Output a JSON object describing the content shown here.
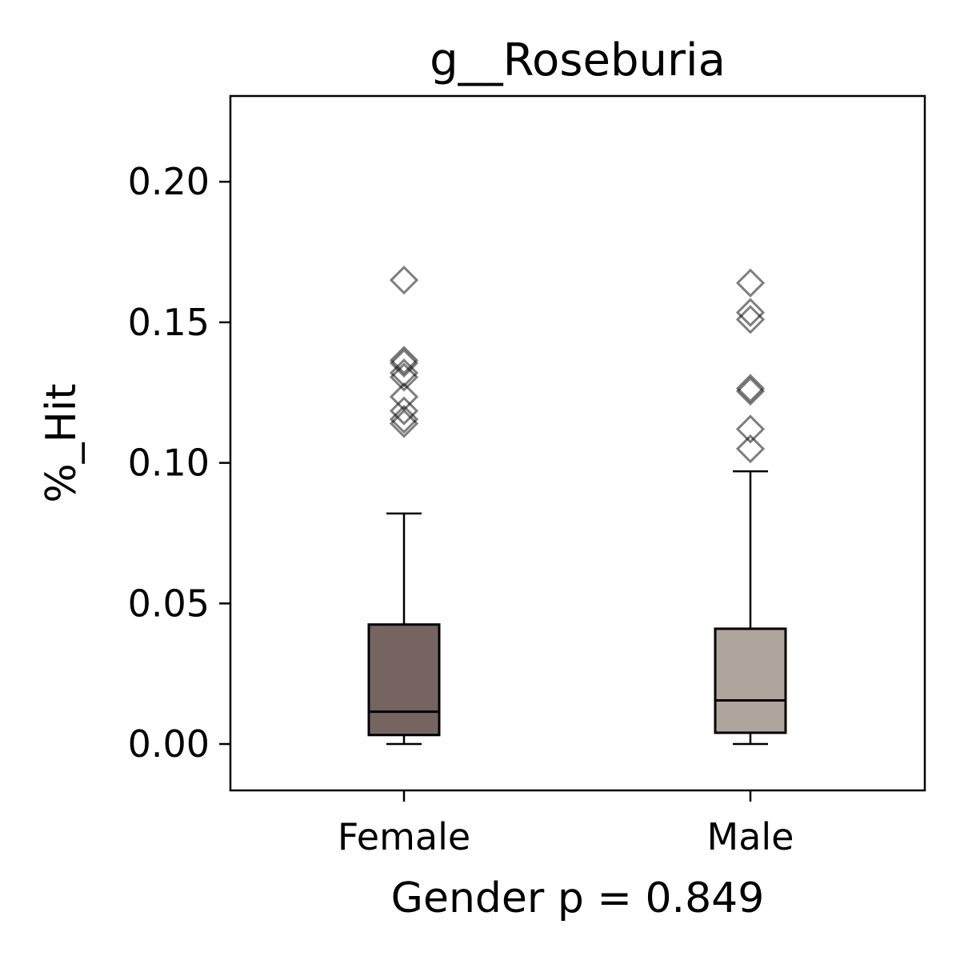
{
  "chart_data": {
    "type": "box",
    "title": "g__Roseburia",
    "xlabel": "Gender p = 0.849",
    "ylabel": "%_Hit",
    "ylim": [
      -0.0165,
      0.2305
    ],
    "yticks": [
      0.0,
      0.05,
      0.1,
      0.15,
      0.2
    ],
    "ytick_labels": [
      "0.00",
      "0.05",
      "0.10",
      "0.15",
      "0.20"
    ],
    "categories": [
      "Female",
      "Male"
    ],
    "grid": false,
    "boxes": [
      {
        "category": "Female",
        "color": "#756461",
        "whisker_low": 0.0,
        "q1": 0.0032,
        "median": 0.0115,
        "q3": 0.0425,
        "whisker_high": 0.082,
        "outliers": [
          0.165,
          0.1365,
          0.1355,
          0.132,
          0.1305,
          0.1235,
          0.1185,
          0.1155,
          0.114
        ]
      },
      {
        "category": "Male",
        "color": "#b0a59d",
        "whisker_low": 0.0,
        "q1": 0.004,
        "median": 0.0155,
        "q3": 0.041,
        "whisker_high": 0.097,
        "outliers": [
          0.164,
          0.1535,
          0.151,
          0.1265,
          0.1255,
          0.112,
          0.105
        ]
      }
    ]
  }
}
